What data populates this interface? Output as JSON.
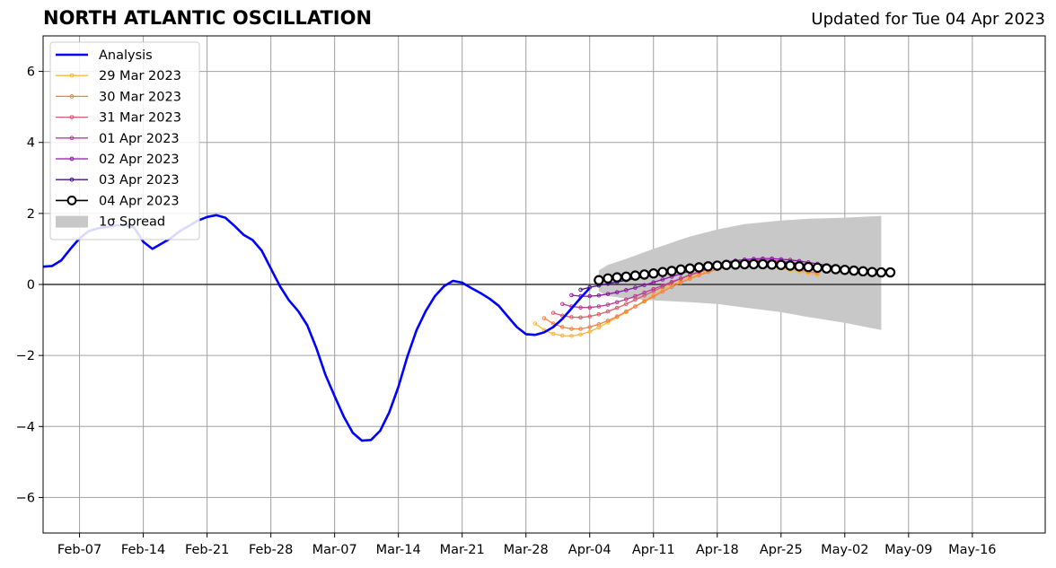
{
  "header": {
    "title": "NORTH ATLANTIC OSCILLATION",
    "updated": "Updated for Tue 04 Apr 2023"
  },
  "chart_data": {
    "type": "line",
    "title": "NORTH ATLANTIC OSCILLATION",
    "subtitle": "Updated for Tue 04 Apr 2023",
    "xlabel": "",
    "ylabel": "",
    "x_type": "date",
    "xlim": [
      "2023-02-03",
      "2023-05-24"
    ],
    "ylim": [
      -7,
      7
    ],
    "x_ticks": [
      {
        "date": "2023-02-07",
        "label": "Feb-07"
      },
      {
        "date": "2023-02-14",
        "label": "Feb-14"
      },
      {
        "date": "2023-02-21",
        "label": "Feb-21"
      },
      {
        "date": "2023-02-28",
        "label": "Feb-28"
      },
      {
        "date": "2023-03-07",
        "label": "Mar-07"
      },
      {
        "date": "2023-03-14",
        "label": "Mar-14"
      },
      {
        "date": "2023-03-21",
        "label": "Mar-21"
      },
      {
        "date": "2023-03-28",
        "label": "Mar-28"
      },
      {
        "date": "2023-04-04",
        "label": "Apr-04"
      },
      {
        "date": "2023-04-11",
        "label": "Apr-11"
      },
      {
        "date": "2023-04-18",
        "label": "Apr-18"
      },
      {
        "date": "2023-04-25",
        "label": "Apr-25"
      },
      {
        "date": "2023-05-02",
        "label": "May-02"
      },
      {
        "date": "2023-05-09",
        "label": "May-09"
      },
      {
        "date": "2023-05-16",
        "label": "May-16"
      }
    ],
    "y_ticks": [
      {
        "value": -6,
        "label": "−6"
      },
      {
        "value": -4,
        "label": "−4"
      },
      {
        "value": -2,
        "label": "−2"
      },
      {
        "value": 0,
        "label": "0"
      },
      {
        "value": 2,
        "label": "2"
      },
      {
        "value": 4,
        "label": "4"
      },
      {
        "value": 6,
        "label": "6"
      }
    ],
    "grid": true,
    "zero_line": true,
    "legend_position": "top-left",
    "analysis": {
      "name": "Analysis",
      "color": "#0000ff",
      "x": [
        "2023-02-03",
        "2023-02-04",
        "2023-02-05",
        "2023-02-06",
        "2023-02-07",
        "2023-02-08",
        "2023-02-09",
        "2023-02-10",
        "2023-02-11",
        "2023-02-12",
        "2023-02-13",
        "2023-02-14",
        "2023-02-15",
        "2023-02-16",
        "2023-02-17",
        "2023-02-18",
        "2023-02-19",
        "2023-02-20",
        "2023-02-21",
        "2023-02-22",
        "2023-02-23",
        "2023-02-24",
        "2023-02-25",
        "2023-02-26",
        "2023-02-27",
        "2023-02-28",
        "2023-03-01",
        "2023-03-02",
        "2023-03-03",
        "2023-03-04",
        "2023-03-05",
        "2023-03-06",
        "2023-03-07",
        "2023-03-08",
        "2023-03-09",
        "2023-03-10",
        "2023-03-11",
        "2023-03-12",
        "2023-03-13",
        "2023-03-14",
        "2023-03-15",
        "2023-03-16",
        "2023-03-17",
        "2023-03-18",
        "2023-03-19",
        "2023-03-20",
        "2023-03-21",
        "2023-03-22",
        "2023-03-23",
        "2023-03-24",
        "2023-03-25",
        "2023-03-26",
        "2023-03-27",
        "2023-03-28",
        "2023-03-29",
        "2023-03-30",
        "2023-03-31",
        "2023-04-01",
        "2023-04-02",
        "2023-04-03",
        "2023-04-04"
      ],
      "values": [
        0.5,
        0.52,
        0.68,
        1.0,
        1.3,
        1.5,
        1.58,
        1.62,
        1.66,
        1.68,
        1.6,
        1.2,
        1.0,
        1.15,
        1.3,
        1.5,
        1.65,
        1.8,
        1.9,
        1.95,
        1.88,
        1.65,
        1.4,
        1.25,
        0.95,
        0.45,
        -0.05,
        -0.45,
        -0.75,
        -1.15,
        -1.8,
        -2.55,
        -3.15,
        -3.72,
        -4.18,
        -4.4,
        -4.38,
        -4.12,
        -3.6,
        -2.88,
        -2.02,
        -1.28,
        -0.75,
        -0.33,
        -0.05,
        0.1,
        0.05,
        -0.1,
        -0.24,
        -0.4,
        -0.6,
        -0.9,
        -1.2,
        -1.4,
        -1.42,
        -1.35,
        -1.2,
        -0.97,
        -0.68,
        -0.38,
        -0.1
      ]
    },
    "forecasts": [
      {
        "name": "29 Mar 2023",
        "color": "#f8b53d",
        "start": "2023-03-29",
        "values": [
          -1.1,
          -1.28,
          -1.39,
          -1.44,
          -1.45,
          -1.41,
          -1.33,
          -1.21,
          -1.07,
          -0.92,
          -0.78,
          -0.62,
          -0.46,
          -0.3,
          -0.15,
          -0.02,
          0.1,
          0.2,
          0.3,
          0.38,
          0.45,
          0.5,
          0.53,
          0.54,
          0.54,
          0.52,
          0.49,
          0.45,
          0.41,
          0.36,
          0.31,
          0.26
        ]
      },
      {
        "name": "30 Mar 2023",
        "color": "#f4823e",
        "start": "2023-03-30",
        "values": [
          -0.95,
          -1.1,
          -1.2,
          -1.25,
          -1.25,
          -1.2,
          -1.12,
          -1.02,
          -0.9,
          -0.76,
          -0.62,
          -0.48,
          -0.34,
          -0.2,
          -0.07,
          0.05,
          0.16,
          0.26,
          0.35,
          0.43,
          0.49,
          0.53,
          0.56,
          0.57,
          0.56,
          0.53,
          0.49,
          0.45,
          0.41,
          0.36,
          0.32
        ]
      },
      {
        "name": "31 Mar 2023",
        "color": "#de5b6b",
        "start": "2023-03-31",
        "values": [
          -0.8,
          -0.88,
          -0.92,
          -0.93,
          -0.9,
          -0.84,
          -0.76,
          -0.66,
          -0.55,
          -0.43,
          -0.31,
          -0.19,
          -0.07,
          0.05,
          0.16,
          0.26,
          0.35,
          0.43,
          0.5,
          0.56,
          0.61,
          0.64,
          0.65,
          0.65,
          0.63,
          0.6,
          0.56,
          0.52,
          0.48,
          0.43,
          0.39
        ]
      },
      {
        "name": "01 Apr 2023",
        "color": "#b83d91",
        "start": "2023-04-01",
        "values": [
          -0.55,
          -0.62,
          -0.65,
          -0.65,
          -0.62,
          -0.57,
          -0.5,
          -0.42,
          -0.33,
          -0.23,
          -0.13,
          -0.03,
          0.07,
          0.17,
          0.27,
          0.36,
          0.45,
          0.52,
          0.58,
          0.63,
          0.66,
          0.68,
          0.69,
          0.68,
          0.66,
          0.63,
          0.59,
          0.55,
          0.51,
          0.47
        ]
      },
      {
        "name": "02 Apr 2023",
        "color": "#8e16a6",
        "start": "2023-04-02",
        "values": [
          -0.3,
          -0.33,
          -0.33,
          -0.31,
          -0.27,
          -0.22,
          -0.16,
          -0.09,
          -0.02,
          0.06,
          0.14,
          0.22,
          0.3,
          0.38,
          0.45,
          0.52,
          0.58,
          0.63,
          0.67,
          0.7,
          0.72,
          0.73,
          0.73,
          0.71,
          0.69,
          0.66,
          0.62,
          0.58,
          0.54,
          0.5
        ]
      },
      {
        "name": "03 Apr 2023",
        "color": "#4b0e8a",
        "start": "2023-04-03",
        "values": [
          -0.15,
          -0.08,
          -0.03,
          0.02,
          0.07,
          0.12,
          0.17,
          0.22,
          0.27,
          0.32,
          0.37,
          0.42,
          0.46,
          0.5,
          0.54,
          0.57,
          0.6,
          0.62,
          0.63,
          0.64,
          0.64,
          0.63,
          0.62,
          0.6,
          0.58,
          0.55,
          0.52,
          0.49,
          0.46,
          0.43
        ]
      },
      {
        "name": "04 Apr 2023",
        "color": "#000000",
        "start": "2023-04-05",
        "marker": "open-circle",
        "values": [
          0.12,
          0.17,
          0.2,
          0.22,
          0.25,
          0.28,
          0.31,
          0.35,
          0.38,
          0.42,
          0.45,
          0.48,
          0.51,
          0.53,
          0.55,
          0.56,
          0.57,
          0.57,
          0.57,
          0.56,
          0.55,
          0.53,
          0.51,
          0.49,
          0.47,
          0.45,
          0.43,
          0.41,
          0.39,
          0.37,
          0.35,
          0.34,
          0.34
        ]
      }
    ],
    "spread": {
      "name": "1σ Spread",
      "color": "#c8c8c8",
      "x": [
        "2023-04-05",
        "2023-04-06",
        "2023-04-08",
        "2023-04-11",
        "2023-04-15",
        "2023-04-18",
        "2023-04-21",
        "2023-04-25",
        "2023-04-28",
        "2023-05-02",
        "2023-05-06"
      ],
      "upper": [
        0.4,
        0.55,
        0.72,
        1.0,
        1.35,
        1.55,
        1.7,
        1.8,
        1.85,
        1.88,
        1.93
      ],
      "lower": [
        -0.2,
        -0.32,
        -0.4,
        -0.45,
        -0.5,
        -0.55,
        -0.65,
        -0.78,
        -0.92,
        -1.08,
        -1.28
      ]
    }
  }
}
